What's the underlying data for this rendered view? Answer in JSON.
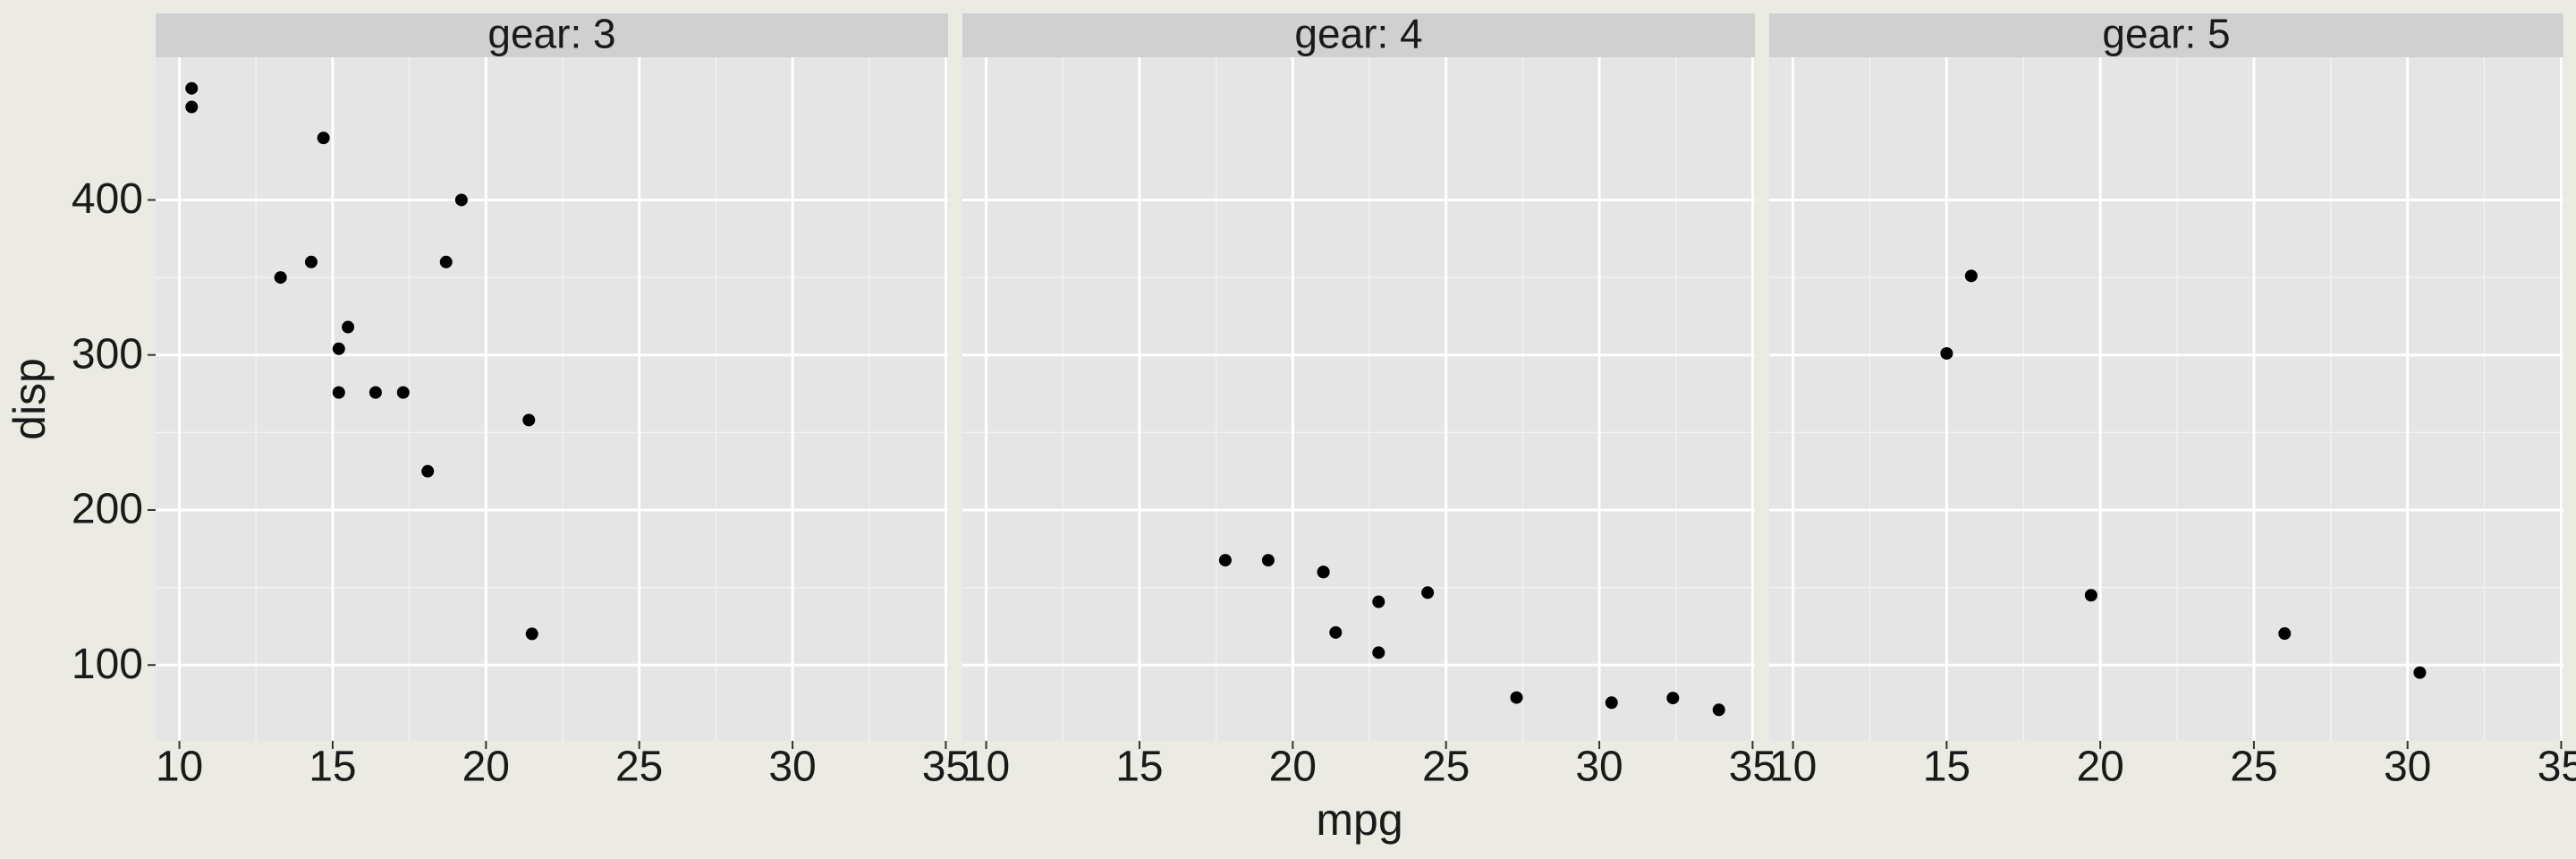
{
  "xlabel": "mpg",
  "ylabel": "disp",
  "chart_data": [
    {
      "type": "scatter",
      "title": "gear: 3",
      "color": "#000000",
      "grid": true,
      "x": [
        21.4,
        18.7,
        18.1,
        14.3,
        16.4,
        17.3,
        15.2,
        10.4,
        10.4,
        14.7,
        21.5,
        15.5,
        15.2,
        13.3,
        19.2
      ],
      "values": [
        258,
        360,
        225,
        360,
        275.8,
        275.8,
        275.8,
        472,
        460,
        440,
        120.1,
        318,
        304,
        350,
        400
      ],
      "xlim": [
        9.225,
        35.075
      ],
      "ylim": [
        51.055,
        492.045
      ],
      "xticks": [
        10,
        15,
        20,
        25,
        30,
        35
      ],
      "yticks": [
        100,
        200,
        300,
        400
      ]
    },
    {
      "type": "scatter",
      "title": "gear: 4",
      "color": "#000000",
      "grid": true,
      "x": [
        21,
        21,
        22.8,
        24.4,
        22.8,
        19.2,
        17.8,
        32.4,
        30.4,
        33.9,
        27.3,
        21.4
      ],
      "values": [
        160,
        160,
        108,
        146.7,
        140.8,
        167.6,
        167.6,
        78.7,
        75.7,
        71.1,
        79,
        121
      ],
      "xlim": [
        9.225,
        35.075
      ],
      "ylim": [
        51.055,
        492.045
      ],
      "xticks": [
        10,
        15,
        20,
        25,
        30,
        35
      ],
      "yticks": [
        100,
        200,
        300,
        400
      ]
    },
    {
      "type": "scatter",
      "title": "gear: 5",
      "color": "#000000",
      "grid": true,
      "x": [
        26,
        30.4,
        15.8,
        19.7,
        15
      ],
      "values": [
        120.3,
        95.1,
        351,
        145,
        301
      ],
      "xlim": [
        9.225,
        35.075
      ],
      "ylim": [
        51.055,
        492.045
      ],
      "xticks": [
        10,
        15,
        20,
        25,
        30,
        35
      ],
      "yticks": [
        100,
        200,
        300,
        400
      ]
    }
  ]
}
